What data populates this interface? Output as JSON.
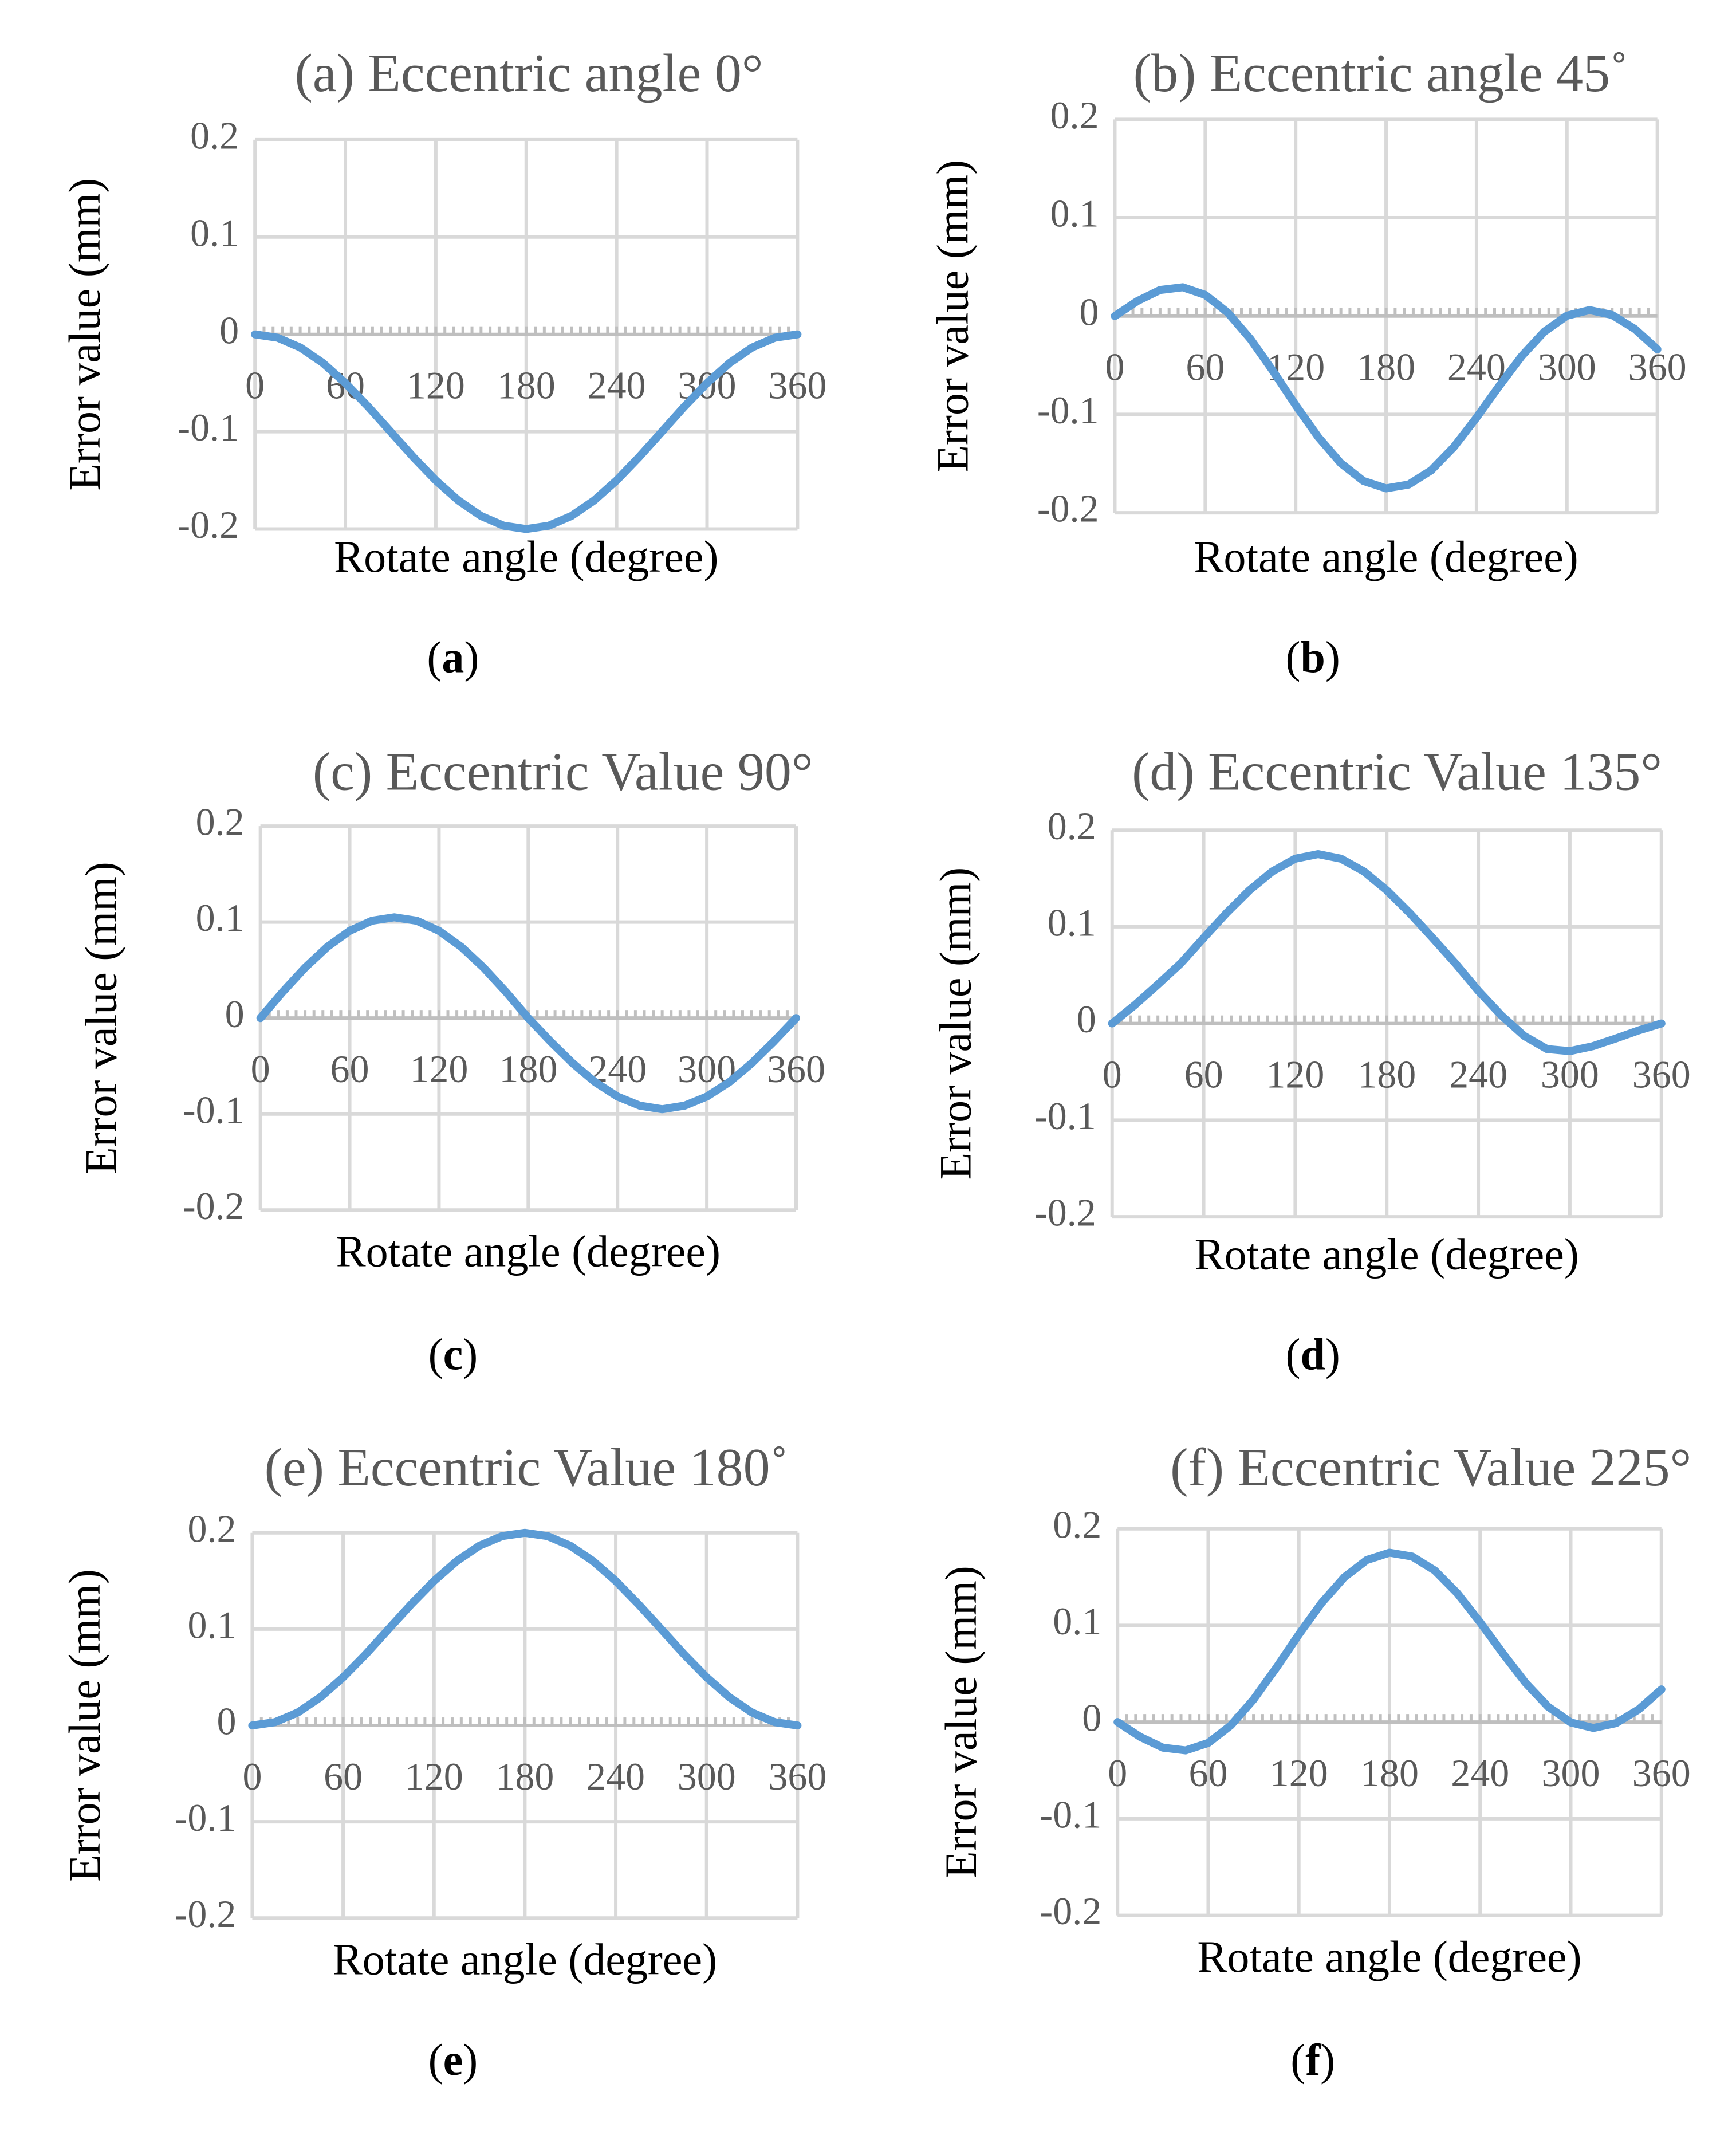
{
  "figure": {
    "caption_open": "(",
    "caption_close": ")"
  },
  "chart_data": [
    {
      "type": "line",
      "title": "(a) Eccentric angle 0°",
      "caption_letter": "a",
      "xlabel": "Rotate angle (degree)",
      "ylabel": "Error value  (mm)",
      "x_ticks": [
        "0",
        "60",
        "120",
        "180",
        "240",
        "300",
        "360"
      ],
      "y_ticks": [
        "0.2",
        "0.1",
        "0",
        "-0.1",
        "-0.2"
      ],
      "xlim": [
        0,
        360
      ],
      "ylim": [
        -0.2,
        0.2
      ],
      "grid": true,
      "color": "#5b9bd5",
      "series": [
        {
          "name": "Error value",
          "x": [
            0,
            15,
            30,
            45,
            60,
            75,
            90,
            105,
            120,
            135,
            150,
            165,
            180,
            195,
            210,
            225,
            240,
            255,
            270,
            285,
            300,
            315,
            330,
            345,
            360
          ],
          "y": [
            0,
            -0.0034,
            -0.0134,
            -0.0293,
            -0.05,
            -0.0741,
            -0.1,
            -0.1259,
            -0.15,
            -0.1707,
            -0.1866,
            -0.1966,
            -0.2,
            -0.1966,
            -0.1866,
            -0.1707,
            -0.15,
            -0.1259,
            -0.1,
            -0.0741,
            -0.05,
            -0.0293,
            -0.0134,
            -0.0034,
            0
          ]
        }
      ]
    },
    {
      "type": "line",
      "title": "(b) Eccentric angle 45˚",
      "caption_letter": "b",
      "xlabel": "Rotate angle (degree)",
      "ylabel": "Error value (mm)",
      "x_ticks": [
        "0",
        "60",
        "120",
        "180",
        "240",
        "300",
        "360"
      ],
      "y_ticks": [
        "0.2",
        "0.1",
        "0",
        "-0.1",
        "-0.2"
      ],
      "xlim": [
        0,
        360
      ],
      "ylim": [
        -0.2,
        0.2
      ],
      "grid": true,
      "color": "#5b9bd5",
      "series": [
        {
          "name": "Error value",
          "x": [
            0,
            15,
            30,
            45,
            60,
            75,
            90,
            105,
            120,
            135,
            150,
            165,
            180,
            195,
            210,
            225,
            240,
            255,
            270,
            285,
            300,
            315,
            330,
            345,
            360
          ],
          "y": [
            0,
            0.0153,
            0.0265,
            0.0293,
            0.0216,
            0.0034,
            -0.0234,
            -0.056,
            -0.0906,
            -0.1231,
            -0.1497,
            -0.1677,
            -0.1752,
            -0.1713,
            -0.1568,
            -0.1331,
            -0.1033,
            -0.0712,
            -0.0407,
            -0.0159,
            0.0004,
            0.0061,
            0.0011,
            -0.0131,
            -0.0338
          ]
        }
      ]
    },
    {
      "type": "line",
      "title": "(c) Eccentric Value 90°",
      "caption_letter": "c",
      "xlabel": "Rotate angle (degree)",
      "ylabel": "Error value (mm)",
      "x_ticks": [
        "0",
        "60",
        "120",
        "180",
        "240",
        "300",
        "360"
      ],
      "y_ticks": [
        "0.2",
        "0.1",
        "0",
        "-0.1",
        "-0.2"
      ],
      "xlim": [
        0,
        360
      ],
      "ylim": [
        -0.2,
        0.2
      ],
      "grid": true,
      "color": "#5b9bd5",
      "series": [
        {
          "name": "Error value",
          "x": [
            0,
            15,
            30,
            45,
            60,
            75,
            90,
            105,
            120,
            135,
            150,
            165,
            180,
            195,
            210,
            225,
            240,
            255,
            270,
            285,
            300,
            315,
            330,
            345,
            360
          ],
          "y": [
            0,
            0.0272,
            0.0525,
            0.0742,
            0.0909,
            0.1014,
            0.105,
            0.1014,
            0.0909,
            0.0742,
            0.0525,
            0.0272,
            0,
            -0.0245,
            -0.0473,
            -0.0668,
            -0.0818,
            -0.0913,
            -0.095,
            -0.0913,
            -0.0818,
            -0.0668,
            -0.0473,
            -0.0245,
            0
          ]
        }
      ]
    },
    {
      "type": "line",
      "title": "(d) Eccentric Value 135°",
      "caption_letter": "d",
      "xlabel": "Rotate angle (degree)",
      "ylabel": "Error value (mm)",
      "x_ticks": [
        "0",
        "60",
        "120",
        "180",
        "240",
        "300",
        "360"
      ],
      "y_ticks": [
        "0.2",
        "0.1",
        "0",
        "-0.1",
        "-0.2"
      ],
      "xlim": [
        0,
        360
      ],
      "ylim": [
        -0.2,
        0.2
      ],
      "grid": true,
      "color": "#5b9bd5",
      "series": [
        {
          "name": "Error value",
          "x": [
            0,
            15,
            30,
            45,
            60,
            75,
            90,
            105,
            120,
            135,
            150,
            165,
            180,
            195,
            210,
            225,
            240,
            255,
            270,
            285,
            300,
            315,
            330,
            345,
            360
          ],
          "y": [
            0,
            0.0192,
            0.0404,
            0.0622,
            0.0885,
            0.1143,
            0.1378,
            0.1573,
            0.1705,
            0.1752,
            0.1705,
            0.1573,
            0.1378,
            0.1143,
            0.0885,
            0.0622,
            0.0338,
            0.0085,
            -0.0128,
            -0.0265,
            -0.0286,
            -0.0235,
            -0.0156,
            -0.0072,
            0
          ]
        }
      ]
    },
    {
      "type": "line",
      "title": "(e) Eccentric Value 180˚",
      "caption_letter": "e",
      "xlabel": "Rotate angle (degree)",
      "ylabel": "Error value (mm)",
      "x_ticks": [
        "0",
        "60",
        "120",
        "180",
        "240",
        "300",
        "360"
      ],
      "y_ticks": [
        "0.2",
        "0.1",
        "0",
        "-0.1",
        "-0.2"
      ],
      "xlim": [
        0,
        360
      ],
      "ylim": [
        -0.2,
        0.2
      ],
      "grid": true,
      "color": "#5b9bd5",
      "series": [
        {
          "name": "Error value",
          "x": [
            0,
            15,
            30,
            45,
            60,
            75,
            90,
            105,
            120,
            135,
            150,
            165,
            180,
            195,
            210,
            225,
            240,
            255,
            270,
            285,
            300,
            315,
            330,
            345,
            360
          ],
          "y": [
            0,
            0.0034,
            0.0134,
            0.0293,
            0.05,
            0.0741,
            0.1,
            0.1259,
            0.15,
            0.1707,
            0.1866,
            0.1966,
            0.2,
            0.1966,
            0.1866,
            0.1707,
            0.15,
            0.1259,
            0.1,
            0.0741,
            0.05,
            0.0293,
            0.0134,
            0.0034,
            0
          ]
        }
      ]
    },
    {
      "type": "line",
      "title": "(f) Eccentric Value 225°",
      "caption_letter": "f",
      "xlabel": "Rotate angle (degree)",
      "ylabel": "Error value (mm)",
      "x_ticks": [
        "0",
        "60",
        "120",
        "180",
        "240",
        "300",
        "360"
      ],
      "y_ticks": [
        "0.2",
        "0.1",
        "0",
        "-0.1",
        "-0.2"
      ],
      "xlim": [
        0,
        360
      ],
      "ylim": [
        -0.2,
        0.2
      ],
      "grid": true,
      "color": "#5b9bd5",
      "series": [
        {
          "name": "Error value",
          "x": [
            0,
            15,
            30,
            45,
            60,
            75,
            90,
            105,
            120,
            135,
            150,
            165,
            180,
            195,
            210,
            225,
            240,
            255,
            270,
            285,
            300,
            315,
            330,
            345,
            360
          ],
          "y": [
            0,
            -0.0153,
            -0.0265,
            -0.0293,
            -0.0216,
            -0.0034,
            0.0234,
            0.056,
            0.0906,
            0.1231,
            0.1497,
            0.1677,
            0.1752,
            0.1713,
            0.1568,
            0.1331,
            0.1033,
            0.0712,
            0.0407,
            0.0159,
            -0.0004,
            -0.0061,
            -0.0011,
            0.0131,
            0.0338
          ]
        }
      ]
    }
  ]
}
